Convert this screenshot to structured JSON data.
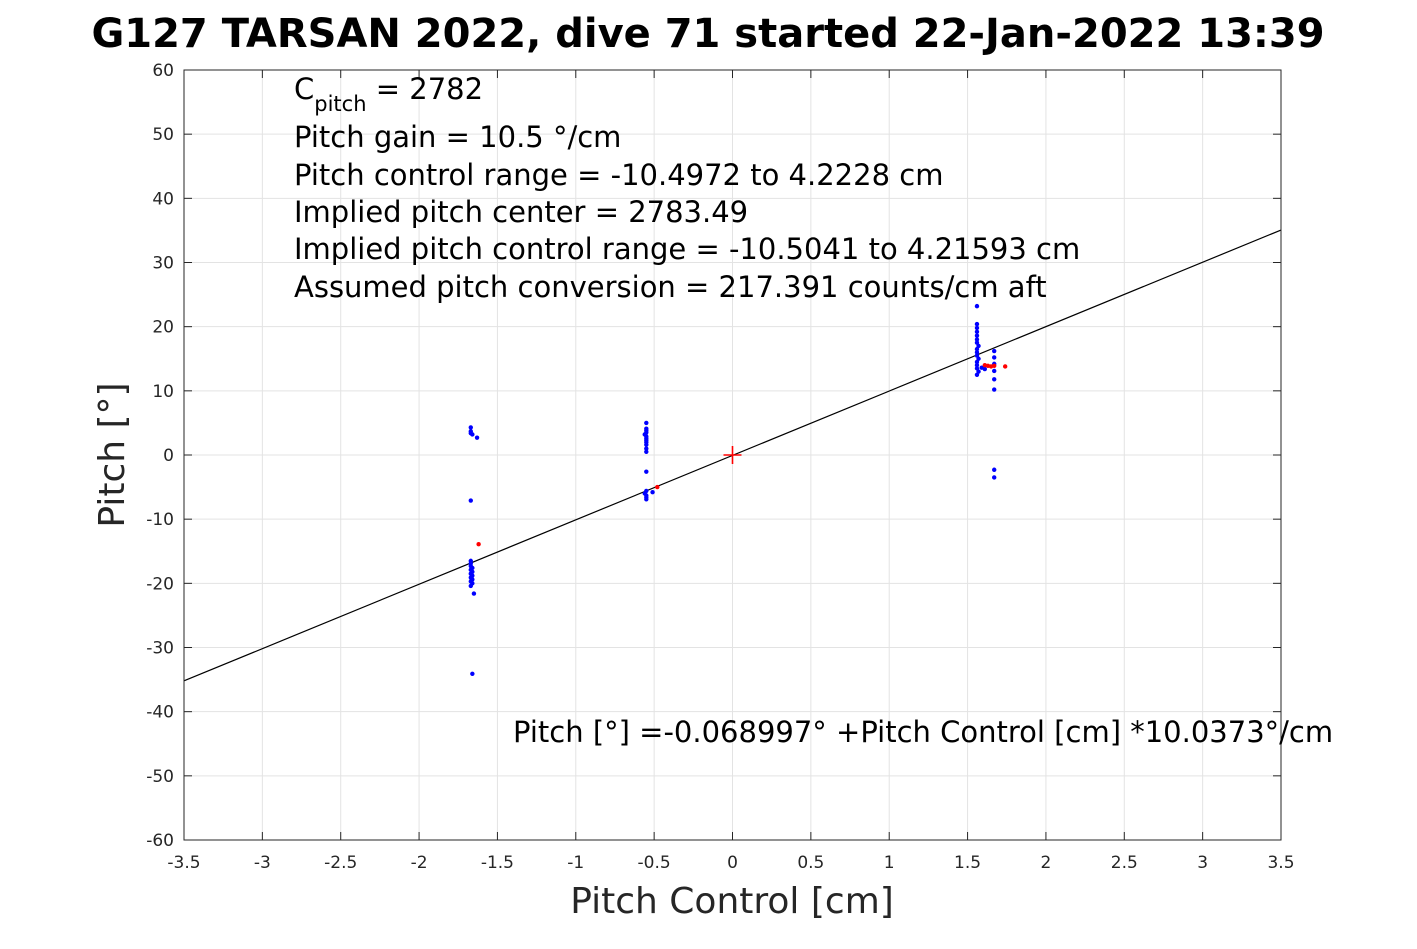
{
  "chart_data": {
    "type": "scatter",
    "title": "G127 TARSAN 2022, dive 71 started 22-Jan-2022 13:39",
    "xlabel": "Pitch Control [cm]",
    "ylabel": "Pitch [°]",
    "xlim": [
      -3.5,
      3.5
    ],
    "ylim": [
      -60,
      60
    ],
    "xticks": [
      -3.5,
      -3,
      -2.5,
      -2,
      -1.5,
      -1,
      -0.5,
      0,
      0.5,
      1,
      1.5,
      2,
      2.5,
      3,
      3.5
    ],
    "xtick_labels": [
      "-3.5",
      "-3",
      "-2.5",
      "-2",
      "-1.5",
      "-1",
      "-0.5",
      "0",
      "0.5",
      "1",
      "1.5",
      "2",
      "2.5",
      "3",
      "3.5"
    ],
    "yticks": [
      -60,
      -50,
      -40,
      -30,
      -20,
      -10,
      0,
      10,
      20,
      30,
      40,
      50,
      60
    ],
    "ytick_labels": [
      "-60",
      "-50",
      "-40",
      "-30",
      "-20",
      "-10",
      "0",
      "10",
      "20",
      "30",
      "40",
      "50",
      "60"
    ],
    "grid": true,
    "annotations": {
      "c_pitch_main": "C",
      "c_pitch_sub": "pitch",
      "c_pitch_value": " = 2782",
      "line2": "Pitch gain = 10.5 °/cm",
      "line3": "Pitch control range = -10.4972 to 4.2228 cm",
      "line4": "Implied pitch center = 2783.49",
      "line5": "Implied pitch control range = -10.5041 to 4.21593 cm",
      "line6": "Assumed pitch conversion = 217.391 counts/cm aft",
      "equation": "Pitch [°] =-0.068997° +Pitch Control [cm] *10.0373°/cm"
    },
    "fit_line": {
      "intercept": -0.068997,
      "slope": 10.0373,
      "color": "#000000"
    },
    "center_marker": {
      "x": 0,
      "y": 0,
      "color": "#ff0000"
    },
    "series": [
      {
        "color": "#0000ff",
        "points": [
          [
            -1.67,
            4.3
          ],
          [
            -1.67,
            3.7
          ],
          [
            -1.67,
            3.4
          ],
          [
            -1.66,
            3.2
          ],
          [
            -1.63,
            2.7
          ],
          [
            -1.67,
            -7.1
          ],
          [
            -1.67,
            -16.5
          ],
          [
            -1.67,
            -16.9
          ],
          [
            -1.67,
            -17.3
          ],
          [
            -1.66,
            -17.6
          ],
          [
            -1.67,
            -17.9
          ],
          [
            -1.66,
            -18.2
          ],
          [
            -1.67,
            -18.5
          ],
          [
            -1.66,
            -18.8
          ],
          [
            -1.67,
            -19.1
          ],
          [
            -1.66,
            -19.4
          ],
          [
            -1.67,
            -19.7
          ],
          [
            -1.66,
            -20.0
          ],
          [
            -1.67,
            -20.4
          ],
          [
            -1.65,
            -21.6
          ],
          [
            -1.66,
            -34.1
          ],
          [
            -0.55,
            5.0
          ],
          [
            -0.55,
            4.1
          ],
          [
            -0.55,
            3.8
          ],
          [
            -0.55,
            3.5
          ],
          [
            -0.56,
            3.2
          ],
          [
            -0.55,
            2.9
          ],
          [
            -0.55,
            2.6
          ],
          [
            -0.55,
            2.3
          ],
          [
            -0.55,
            2.0
          ],
          [
            -0.55,
            1.6
          ],
          [
            -0.55,
            1.0
          ],
          [
            -0.55,
            0.5
          ],
          [
            -0.55,
            -2.6
          ],
          [
            -0.55,
            -5.6
          ],
          [
            -0.56,
            -6.0
          ],
          [
            -0.55,
            -6.3
          ],
          [
            -0.55,
            -6.6
          ],
          [
            -0.55,
            -6.9
          ],
          [
            -0.51,
            -5.8
          ],
          [
            1.56,
            23.2
          ],
          [
            1.56,
            20.4
          ],
          [
            1.56,
            19.8
          ],
          [
            1.56,
            19.2
          ],
          [
            1.56,
            18.6
          ],
          [
            1.56,
            18.0
          ],
          [
            1.56,
            17.5
          ],
          [
            1.57,
            17.0
          ],
          [
            1.56,
            16.5
          ],
          [
            1.56,
            16.0
          ],
          [
            1.56,
            15.5
          ],
          [
            1.57,
            15.0
          ],
          [
            1.56,
            14.5
          ],
          [
            1.56,
            14.0
          ],
          [
            1.56,
            13.5
          ],
          [
            1.57,
            13.0
          ],
          [
            1.56,
            12.5
          ],
          [
            1.59,
            13.6
          ],
          [
            1.61,
            13.4
          ],
          [
            1.67,
            16.2
          ],
          [
            1.67,
            15.2
          ],
          [
            1.67,
            14.2
          ],
          [
            1.67,
            13.1
          ],
          [
            1.67,
            11.8
          ],
          [
            1.67,
            10.2
          ],
          [
            1.67,
            -2.3
          ],
          [
            1.67,
            -3.5
          ]
        ]
      },
      {
        "color": "#ff0000",
        "points": [
          [
            -1.62,
            -13.9
          ],
          [
            -0.48,
            -5.0
          ],
          [
            1.61,
            14.0
          ],
          [
            1.63,
            13.9
          ],
          [
            1.65,
            13.8
          ],
          [
            1.67,
            13.9
          ],
          [
            1.74,
            13.8
          ]
        ]
      }
    ]
  }
}
